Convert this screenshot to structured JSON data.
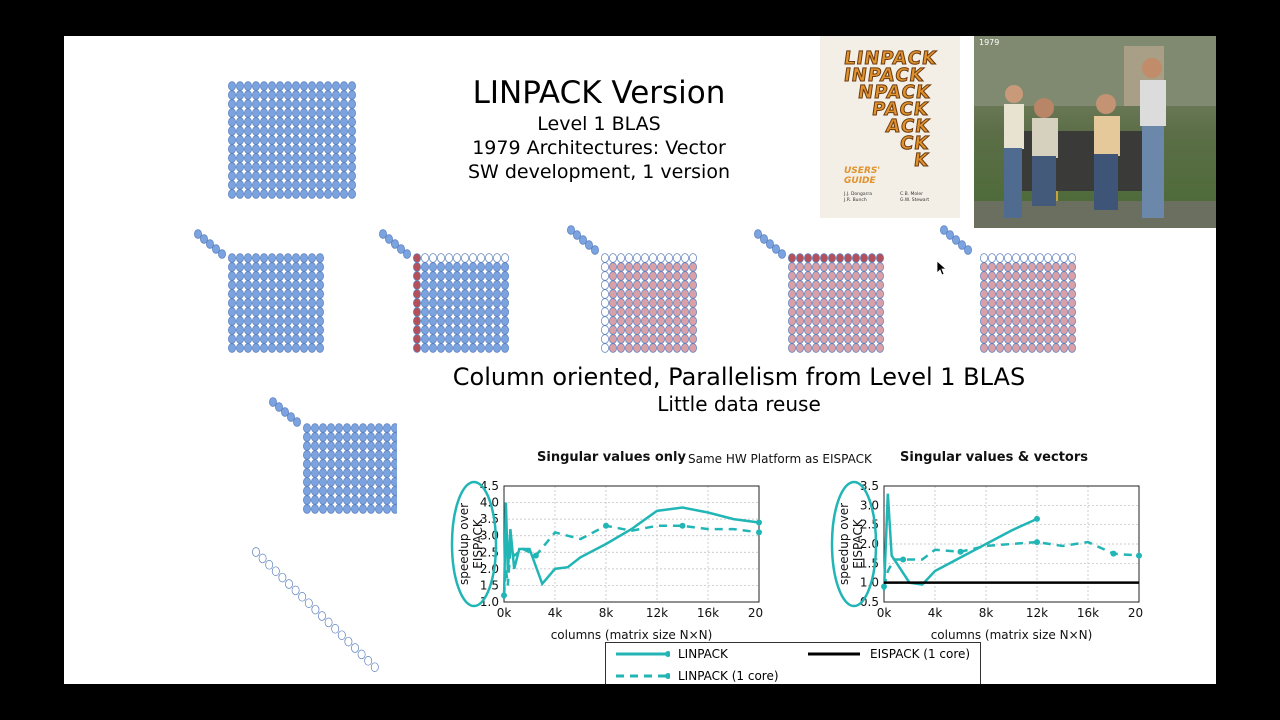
{
  "slide": {
    "title": "LINPACK Version",
    "subtitle_lines": [
      "Level 1 BLAS",
      "1979 Architectures: Vector",
      "SW development, 1 version"
    ],
    "mid_line1": "Column oriented, Parallelism from Level 1 BLAS",
    "mid_line2": "Little data reuse"
  },
  "cover": {
    "rows": [
      "LINPACK",
      "INPACK",
      "NPACK",
      "PACK",
      "ACK",
      "CK",
      "K"
    ],
    "guide": [
      "USERS'",
      "GUIDE"
    ],
    "authors": [
      "J.J. Dongarra",
      "C.B. Moler",
      "J.R. Bunch",
      "G.W. Stewart"
    ]
  },
  "photo": {
    "year": "1979"
  },
  "charts_header": {
    "left_title": "Singular values only",
    "note": "Same HW Platform as EISPACK",
    "right_title": "Singular values & vectors"
  },
  "legend": {
    "linpack": "LINPACK",
    "linpack1": "LINPACK (1 core)",
    "eispack1": "EISPACK (1 core)"
  },
  "colors": {
    "teal": "#22b5b5",
    "dot_blue": "#7ba3e0",
    "dot_red": "#b5505a",
    "dot_pink": "#d9a0a8",
    "outline": "#5b7fbd"
  },
  "chart_data": [
    {
      "type": "line",
      "title": "Singular values only",
      "ylabel": "speedup over EISPACK",
      "xlabel": "columns (matrix size N×N)",
      "xlim": [
        0,
        20000
      ],
      "ylim": [
        1.0,
        4.5
      ],
      "xticks": [
        "0k",
        "4k",
        "8k",
        "12k",
        "16k",
        "20k"
      ],
      "yticks": [
        "1.0",
        "1.5",
        "2.0",
        "2.5",
        "3.0",
        "3.5",
        "4.0",
        "4.5"
      ],
      "series": [
        {
          "name": "LINPACK",
          "style": "solid",
          "x": [
            0,
            150,
            300,
            500,
            800,
            1200,
            2000,
            3000,
            4000,
            5000,
            6000,
            8000,
            10000,
            12000,
            14000,
            16000,
            18000,
            20000
          ],
          "y": [
            1.1,
            4.0,
            1.9,
            3.2,
            2.0,
            2.6,
            2.6,
            1.55,
            2.0,
            2.05,
            2.35,
            2.75,
            3.2,
            3.75,
            3.85,
            3.7,
            3.5,
            3.4
          ]
        },
        {
          "name": "LINPACK (1 core)",
          "style": "dashed",
          "x": [
            0,
            150,
            300,
            500,
            800,
            1500,
            2500,
            4000,
            6000,
            8000,
            10000,
            12000,
            14000,
            16000,
            18000,
            20000
          ],
          "y": [
            1.2,
            2.0,
            1.5,
            2.6,
            2.4,
            2.6,
            2.4,
            3.1,
            2.9,
            3.3,
            3.15,
            3.3,
            3.3,
            3.2,
            3.2,
            3.1
          ]
        }
      ]
    },
    {
      "type": "line",
      "title": "Singular values & vectors",
      "ylabel": "speedup over EISPACK",
      "xlabel": "columns (matrix size N×N)",
      "xlim": [
        0,
        20000
      ],
      "ylim": [
        0.5,
        3.5
      ],
      "xticks": [
        "0k",
        "4k",
        "8k",
        "12k",
        "16k",
        "20k"
      ],
      "yticks": [
        "0.5",
        "1.0",
        "1.5",
        "2.0",
        "2.5",
        "3.0",
        "3.5"
      ],
      "series": [
        {
          "name": "LINPACK",
          "style": "solid",
          "x": [
            0,
            300,
            600,
            1000,
            2000,
            3000,
            4000,
            6000,
            8000,
            10000,
            12000
          ],
          "y": [
            0.8,
            3.3,
            1.7,
            1.5,
            1.0,
            0.95,
            1.3,
            1.65,
            2.0,
            2.35,
            2.65
          ]
        },
        {
          "name": "LINPACK (1 core)",
          "style": "dashed",
          "x": [
            0,
            300,
            800,
            1500,
            3000,
            4000,
            6000,
            8000,
            10000,
            12000,
            14000,
            16000,
            18000,
            20000
          ],
          "y": [
            0.9,
            1.3,
            1.6,
            1.6,
            1.6,
            1.85,
            1.8,
            1.95,
            2.0,
            2.05,
            1.95,
            2.05,
            1.75,
            1.7
          ]
        },
        {
          "name": "EISPACK (1 core)",
          "style": "black",
          "x": [
            0,
            20000
          ],
          "y": [
            1.0,
            1.0
          ]
        }
      ]
    }
  ]
}
